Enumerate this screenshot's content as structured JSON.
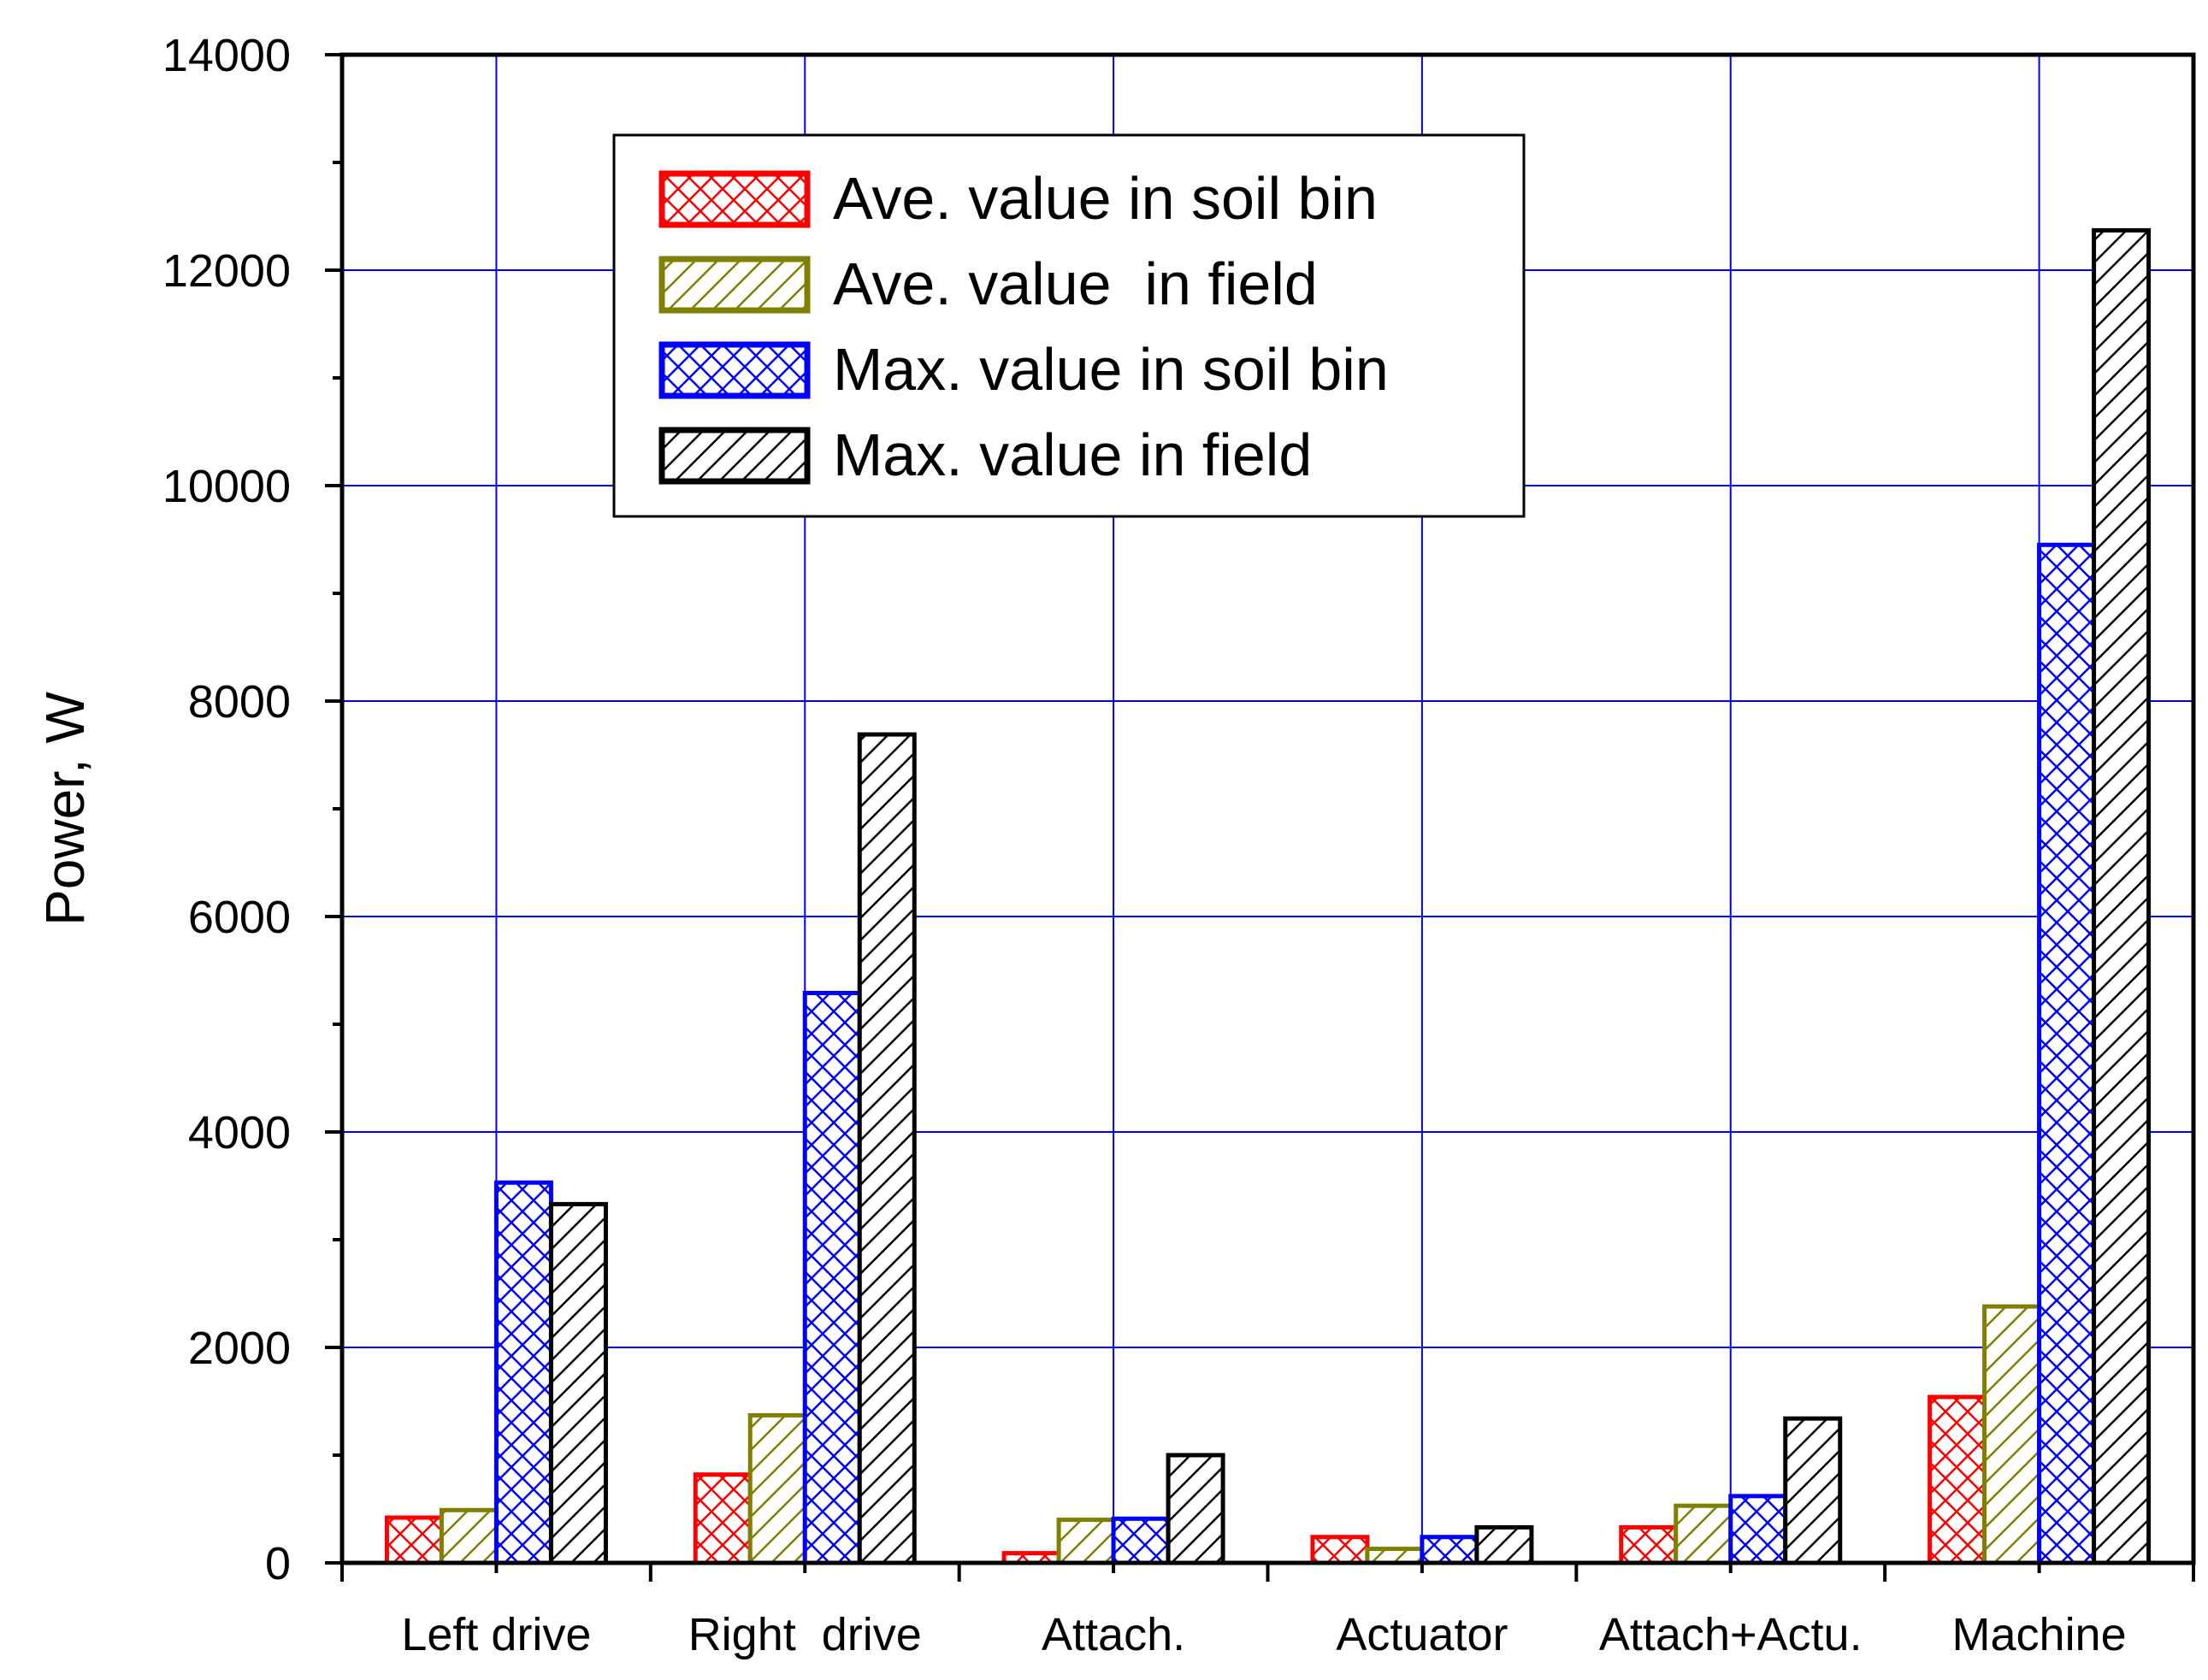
{
  "chart_data": {
    "type": "bar",
    "title": "",
    "xlabel": "",
    "ylabel": "Power, W",
    "ylim": [
      0,
      14000
    ],
    "yticks": [
      0,
      2000,
      4000,
      6000,
      8000,
      10000,
      12000,
      14000
    ],
    "ytick_labels": [
      "0",
      "2000",
      "4000",
      "6000",
      "8000",
      "10000",
      "12000",
      "14000"
    ],
    "categories": [
      "Left drive",
      "Right  drive",
      "Attach.",
      "Actuator",
      "Attach+Actu.",
      "Machine"
    ],
    "grid": true,
    "legend_position": "top-left",
    "series": [
      {
        "name": "Ave. value in soil bin",
        "values": [
          420,
          820,
          90,
          240,
          330,
          1540
        ],
        "color": "#ff0000",
        "pattern": "crosshatch"
      },
      {
        "name": "Ave. value  in field",
        "values": [
          490,
          1370,
          400,
          130,
          530,
          2380
        ],
        "color": "#808000",
        "pattern": "diagonal"
      },
      {
        "name": "Max. value in soil bin",
        "values": [
          3530,
          5290,
          410,
          240,
          620,
          9450
        ],
        "color": "#0000ff",
        "pattern": "crosshatch"
      },
      {
        "name": "Max. value in field",
        "values": [
          3330,
          7690,
          1000,
          330,
          1340,
          12370
        ],
        "color": "#000000",
        "pattern": "diagonal"
      }
    ],
    "colors": {
      "grid": "#0000ff",
      "axis": "#000000",
      "background": "#ffffff"
    }
  }
}
